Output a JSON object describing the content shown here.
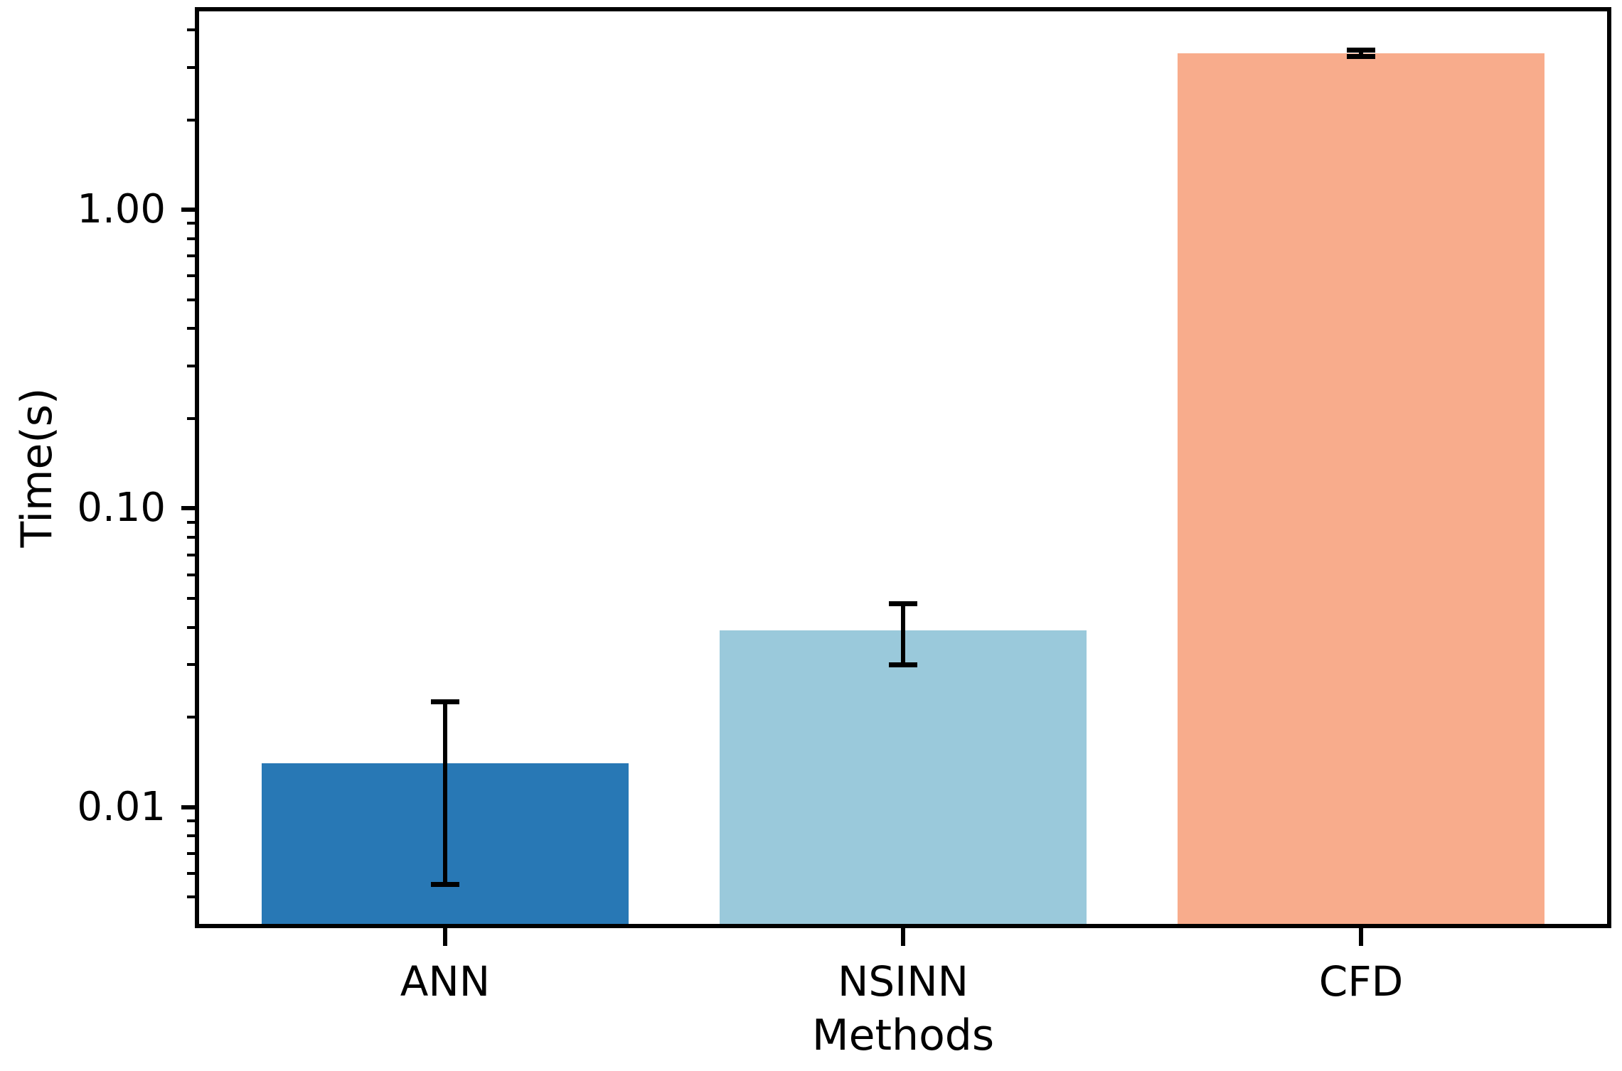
{
  "chart_data": {
    "type": "bar",
    "title": "",
    "xlabel": "Methods",
    "ylabel": "Time(s)",
    "categories": [
      "ANN",
      "NSINN",
      "CFD"
    ],
    "values": [
      0.014,
      0.039,
      3.34
    ],
    "errors": [
      0.0085,
      0.009,
      0.09
    ],
    "bar_colors": [
      "#2878b5",
      "#9ac9db",
      "#f8ac8c"
    ],
    "error_color": "#000000",
    "yscale": "log",
    "ylim": [
      0.004,
      4.69
    ],
    "yticks": [
      {
        "value": 1.0,
        "label": "1.00"
      },
      {
        "value": 0.1,
        "label": "0.10"
      },
      {
        "value": 0.01,
        "label": "0.01"
      }
    ],
    "grid": false,
    "legend": "none",
    "background_color": "#ffffff",
    "spine_color": "#000000",
    "text_color": "#000000"
  }
}
